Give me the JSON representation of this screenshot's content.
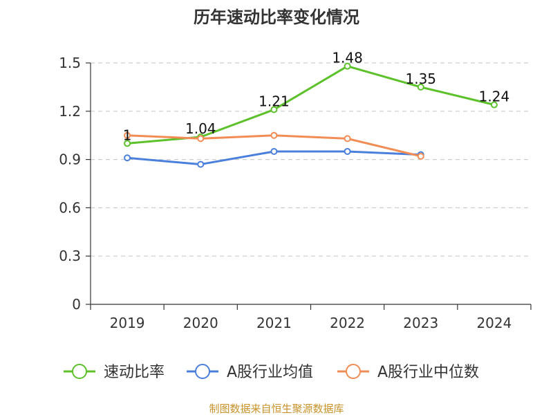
{
  "chart_data": {
    "type": "line",
    "title": "历年速动比率变化情况",
    "categories": [
      "2019",
      "2020",
      "2021",
      "2022",
      "2023",
      "2024"
    ],
    "ylim": [
      0,
      1.5
    ],
    "yticks": [
      "0",
      "0.3",
      "0.6",
      "0.9",
      "1.2",
      "1.5"
    ],
    "grid": true,
    "legend_position": "bottom",
    "series": [
      {
        "name": "速动比率",
        "color": "#5cc12a",
        "values": [
          1.0,
          1.04,
          1.21,
          1.48,
          1.35,
          1.24
        ],
        "labels": [
          "1",
          "1.04",
          "1.21",
          "1.48",
          "1.35",
          "1.24"
        ]
      },
      {
        "name": "A股行业均值",
        "color": "#4a7fdb",
        "values": [
          0.91,
          0.87,
          0.95,
          0.95,
          0.93,
          null
        ]
      },
      {
        "name": "A股行业中位数",
        "color": "#f28c55",
        "values": [
          1.05,
          1.03,
          1.05,
          1.03,
          0.92,
          null
        ]
      }
    ],
    "source": "制图数据来自恒生聚源数据库"
  }
}
